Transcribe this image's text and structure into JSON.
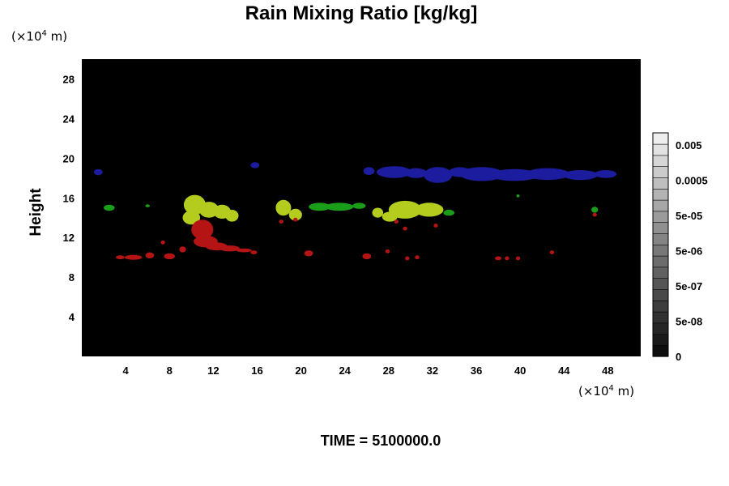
{
  "chart_data": {
    "type": "heatmap",
    "title": "Rain Mixing Ratio [kg/kg]",
    "ylabel": "Height",
    "yunit": {
      "prefix": "(×10",
      "exp": "4",
      "suffix": " m)"
    },
    "xunit": {
      "prefix": "(×10",
      "exp": "4",
      "suffix": " m)"
    },
    "xlim": [
      0,
      51
    ],
    "ylim": [
      0,
      30
    ],
    "xticks": [
      4,
      8,
      12,
      16,
      20,
      24,
      28,
      32,
      36,
      40,
      44,
      48
    ],
    "yticks": [
      4,
      8,
      12,
      16,
      20,
      24,
      28
    ],
    "background": "#000000",
    "colorbar": {
      "labels": [
        "0.005",
        "0.0005",
        "5e-05",
        "5e-06",
        "5e-07",
        "5e-08",
        "0"
      ],
      "levels": 20
    },
    "footer": "TIME = 5100000.0",
    "regions": [
      {
        "name": "upper blue layer",
        "color": "#1c1c9e",
        "blobs": [
          [
            1.5,
            18.6,
            0.4,
            0.3
          ],
          [
            15.8,
            19.3,
            0.4,
            0.3
          ],
          [
            26.2,
            18.7,
            0.5,
            0.4
          ],
          [
            28.5,
            18.6,
            1.6,
            0.6
          ],
          [
            30.5,
            18.5,
            1.0,
            0.5
          ],
          [
            32.5,
            18.3,
            1.3,
            0.8
          ],
          [
            34.5,
            18.6,
            1.0,
            0.5
          ],
          [
            36.5,
            18.4,
            2.0,
            0.7
          ],
          [
            39.5,
            18.3,
            2.2,
            0.6
          ],
          [
            42.5,
            18.4,
            2.0,
            0.6
          ],
          [
            45.5,
            18.3,
            1.6,
            0.5
          ],
          [
            47.8,
            18.4,
            1.0,
            0.4
          ]
        ]
      },
      {
        "name": "yellow-green core",
        "color": "#b3cc1e",
        "blobs": [
          [
            10.3,
            15.3,
            1.0,
            1.0
          ],
          [
            10.0,
            14.0,
            0.8,
            0.7
          ],
          [
            11.6,
            14.8,
            0.9,
            0.8
          ],
          [
            12.8,
            14.6,
            0.8,
            0.7
          ],
          [
            13.7,
            14.2,
            0.6,
            0.6
          ],
          [
            18.4,
            15.0,
            0.7,
            0.8
          ],
          [
            19.5,
            14.3,
            0.6,
            0.6
          ],
          [
            27.0,
            14.5,
            0.5,
            0.5
          ],
          [
            29.5,
            14.8,
            1.5,
            0.9
          ],
          [
            31.7,
            14.8,
            1.3,
            0.7
          ],
          [
            28.1,
            14.1,
            0.7,
            0.5
          ]
        ]
      },
      {
        "name": "green edges",
        "color": "#1a9e1a",
        "blobs": [
          [
            2.5,
            15.0,
            0.5,
            0.3
          ],
          [
            6.0,
            15.2,
            0.2,
            0.15
          ],
          [
            21.7,
            15.1,
            1.0,
            0.4
          ],
          [
            23.5,
            15.1,
            1.3,
            0.4
          ],
          [
            25.3,
            15.2,
            0.6,
            0.3
          ],
          [
            33.5,
            14.5,
            0.5,
            0.3
          ],
          [
            46.8,
            14.8,
            0.3,
            0.3
          ],
          [
            39.8,
            16.2,
            0.15,
            0.15
          ]
        ]
      },
      {
        "name": "red melting layer",
        "color": "#b41414",
        "blobs": [
          [
            11.0,
            12.8,
            1.0,
            1.0
          ],
          [
            11.3,
            11.6,
            1.1,
            0.6
          ],
          [
            12.3,
            11.1,
            1.0,
            0.4
          ],
          [
            13.5,
            10.9,
            0.9,
            0.3
          ],
          [
            14.8,
            10.7,
            0.7,
            0.2
          ],
          [
            15.7,
            10.5,
            0.3,
            0.2
          ],
          [
            3.5,
            10.0,
            0.4,
            0.2
          ],
          [
            4.7,
            10.0,
            0.8,
            0.25
          ],
          [
            6.2,
            10.2,
            0.4,
            0.3
          ],
          [
            8.0,
            10.1,
            0.5,
            0.3
          ],
          [
            9.2,
            10.8,
            0.3,
            0.3
          ],
          [
            7.4,
            11.5,
            0.2,
            0.2
          ],
          [
            20.7,
            10.4,
            0.4,
            0.3
          ],
          [
            26.0,
            10.1,
            0.4,
            0.3
          ],
          [
            27.9,
            10.6,
            0.2,
            0.2
          ],
          [
            29.7,
            9.9,
            0.2,
            0.2
          ],
          [
            30.6,
            10.0,
            0.2,
            0.2
          ],
          [
            38.0,
            9.9,
            0.3,
            0.2
          ],
          [
            38.8,
            9.9,
            0.2,
            0.2
          ],
          [
            39.8,
            9.9,
            0.2,
            0.2
          ],
          [
            42.9,
            10.5,
            0.2,
            0.2
          ],
          [
            18.2,
            13.6,
            0.2,
            0.2
          ],
          [
            19.5,
            13.8,
            0.2,
            0.2
          ],
          [
            28.7,
            13.6,
            0.2,
            0.2
          ],
          [
            29.5,
            12.9,
            0.2,
            0.2
          ],
          [
            32.3,
            13.2,
            0.2,
            0.2
          ],
          [
            46.8,
            14.3,
            0.2,
            0.2
          ]
        ]
      }
    ]
  }
}
